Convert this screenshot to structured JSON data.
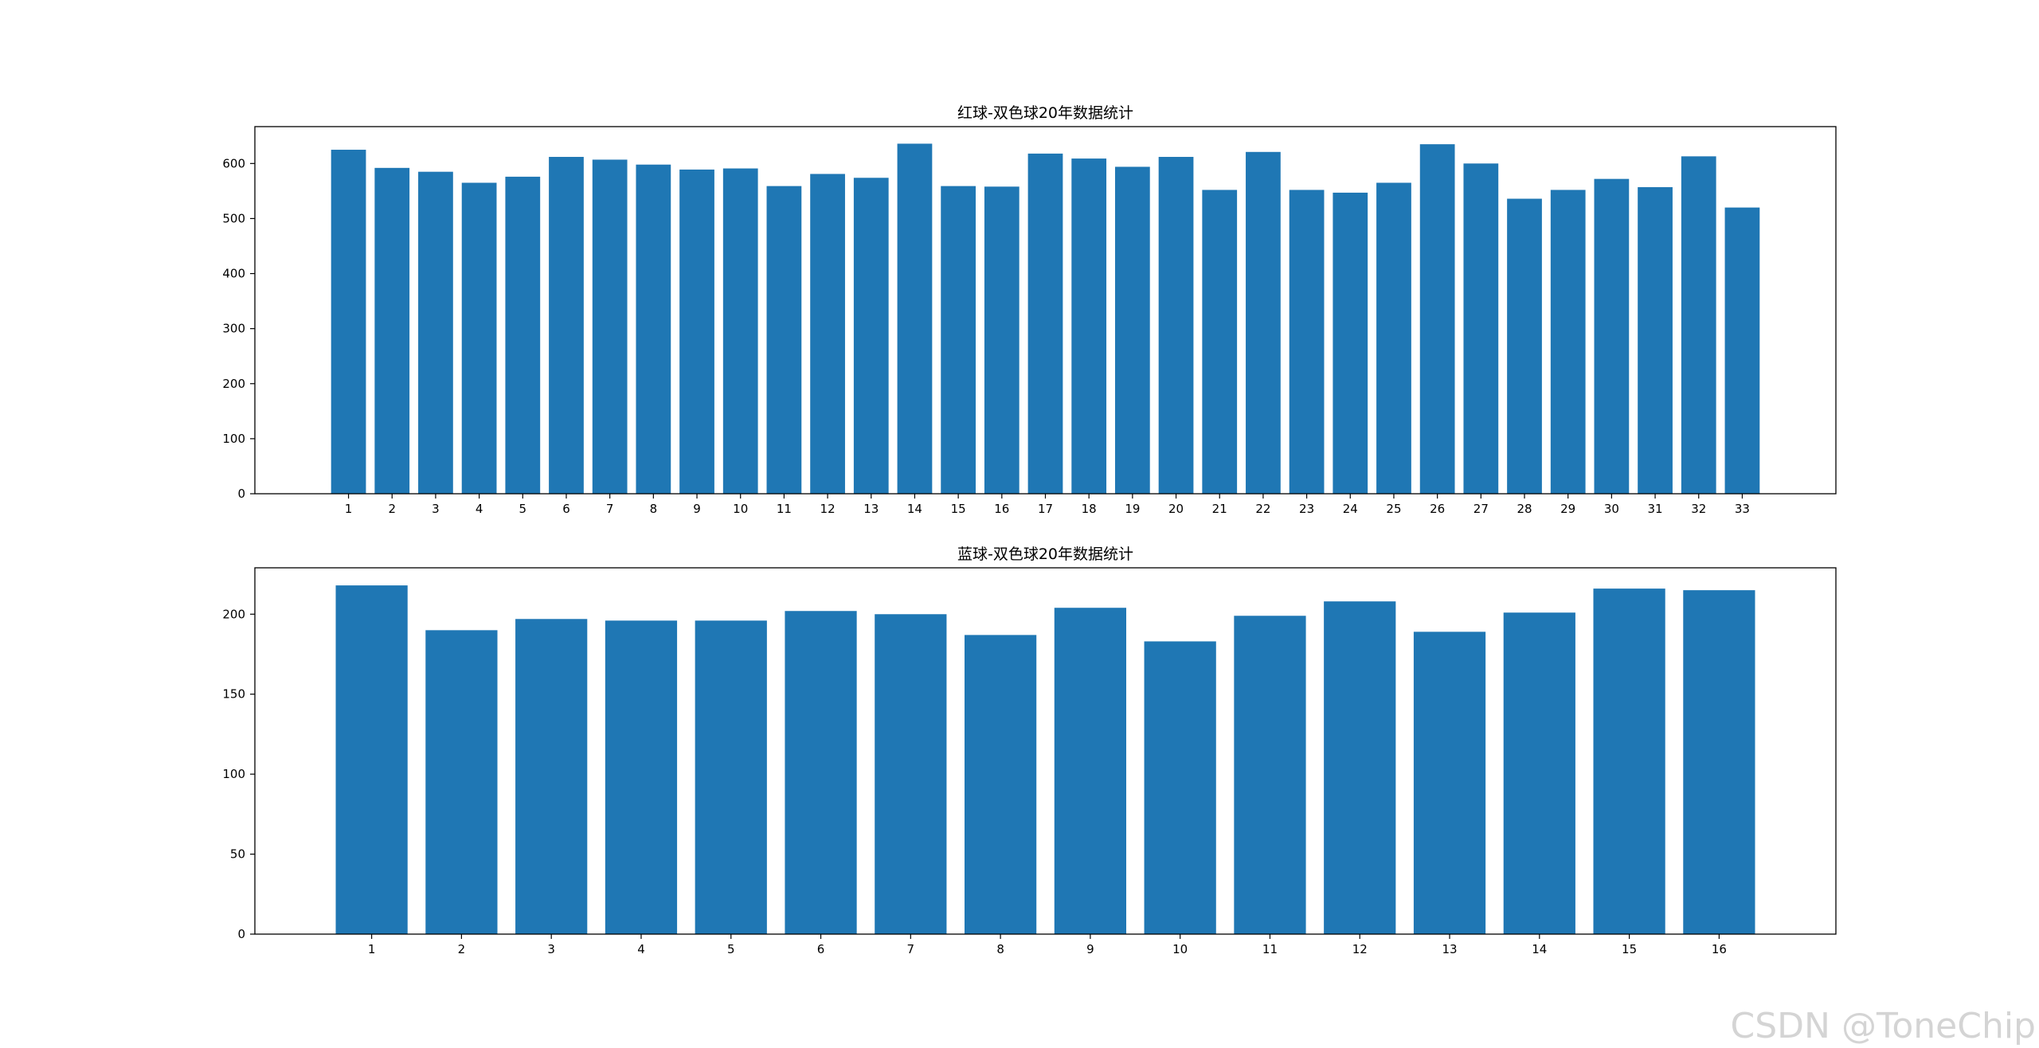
{
  "watermark": "CSDN @ToneChip",
  "colors": {
    "bar": "#1f77b4",
    "axis": "#000000",
    "background": "#ffffff"
  },
  "chart_data": [
    {
      "type": "bar",
      "title": "红球-双色球20年数据统计",
      "xlabel": "",
      "ylabel": "",
      "grid": false,
      "categories": [
        "1",
        "2",
        "3",
        "4",
        "5",
        "6",
        "7",
        "8",
        "9",
        "10",
        "11",
        "12",
        "13",
        "14",
        "15",
        "16",
        "17",
        "18",
        "19",
        "20",
        "21",
        "22",
        "23",
        "24",
        "25",
        "26",
        "27",
        "28",
        "29",
        "30",
        "31",
        "32",
        "33"
      ],
      "values": [
        625,
        592,
        585,
        565,
        576,
        612,
        607,
        598,
        589,
        591,
        559,
        581,
        574,
        636,
        559,
        558,
        618,
        609,
        594,
        612,
        552,
        621,
        552,
        547,
        565,
        635,
        600,
        536,
        552,
        572,
        557,
        613,
        520
      ],
      "yticks": [
        0,
        100,
        200,
        300,
        400,
        500,
        600
      ],
      "ylim": [
        0,
        667
      ]
    },
    {
      "type": "bar",
      "title": "蓝球-双色球20年数据统计",
      "xlabel": "",
      "ylabel": "",
      "grid": false,
      "categories": [
        "1",
        "2",
        "3",
        "4",
        "5",
        "6",
        "7",
        "8",
        "9",
        "10",
        "11",
        "12",
        "13",
        "14",
        "15",
        "16"
      ],
      "values": [
        218,
        190,
        197,
        196,
        196,
        202,
        200,
        187,
        204,
        183,
        199,
        208,
        189,
        201,
        216,
        215
      ],
      "yticks": [
        0,
        50,
        100,
        150,
        200
      ],
      "ylim": [
        0,
        229
      ]
    }
  ]
}
